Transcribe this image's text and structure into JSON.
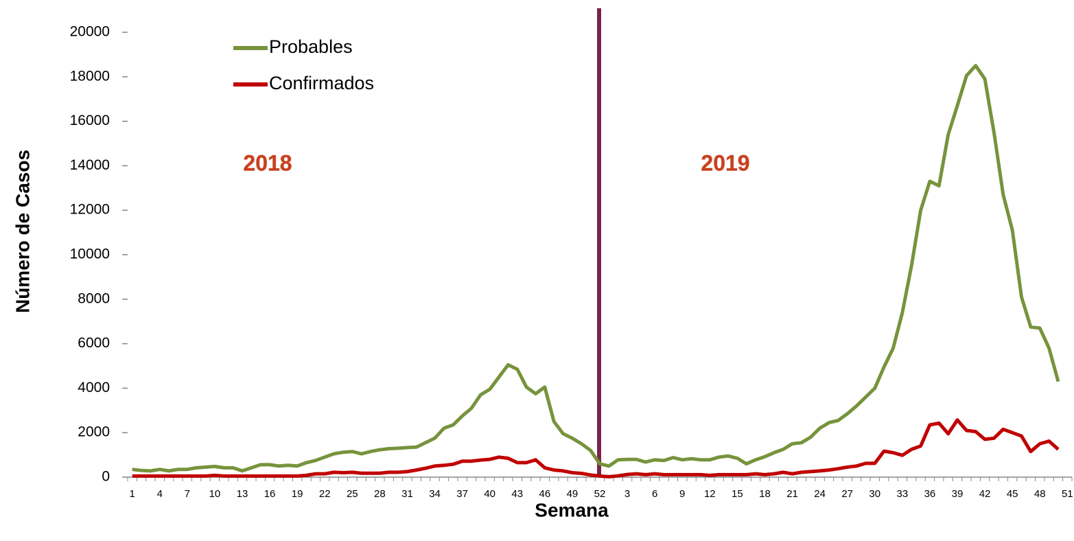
{
  "chart_data": {
    "type": "line",
    "xlabel": "Semana",
    "ylabel": "Número de Casos",
    "annotations": [
      "2018",
      "2019"
    ],
    "legend": "upper left",
    "categories": [
      "1",
      null,
      null,
      "4",
      null,
      null,
      "7",
      null,
      null,
      "10",
      null,
      null,
      "13",
      null,
      null,
      "16",
      null,
      null,
      "19",
      null,
      null,
      "22",
      null,
      null,
      "25",
      null,
      null,
      "28",
      null,
      null,
      "31",
      null,
      null,
      "34",
      null,
      null,
      "37",
      null,
      null,
      "40",
      null,
      null,
      "43",
      null,
      null,
      "46",
      null,
      null,
      "49",
      null,
      null,
      "52",
      null,
      null,
      "3",
      null,
      null,
      "6",
      null,
      null,
      "9",
      null,
      null,
      "12",
      null,
      null,
      "15",
      null,
      null,
      "18",
      null,
      null,
      "21",
      null,
      null,
      "24",
      null,
      null,
      "27",
      null,
      null,
      "30",
      null,
      null,
      "33",
      null,
      null,
      "36",
      null,
      null,
      "39",
      null,
      null,
      "42",
      null,
      null,
      "45",
      null,
      null,
      "48",
      null,
      null,
      "51"
    ],
    "series": [
      {
        "name": "Probables",
        "color": "#77933c",
        "values": [
          350,
          300,
          280,
          350,
          280,
          350,
          350,
          420,
          450,
          480,
          420,
          420,
          280,
          420,
          560,
          560,
          500,
          530,
          500,
          650,
          750,
          900,
          1050,
          1120,
          1150,
          1050,
          1150,
          1230,
          1280,
          1300,
          1330,
          1350,
          1550,
          1750,
          2200,
          2350,
          2750,
          3100,
          3700,
          3950,
          4500,
          5050,
          4850,
          4050,
          3750,
          4050,
          2500,
          1950,
          1750,
          1500,
          1200,
          600,
          500,
          780,
          800,
          800,
          680,
          780,
          750,
          880,
          780,
          830,
          780,
          780,
          900,
          950,
          850,
          600,
          780,
          920,
          1100,
          1250,
          1500,
          1550,
          1800,
          2200,
          2450,
          2550,
          2850,
          3200,
          3600,
          4000,
          4950,
          5800,
          7400,
          9500,
          12000,
          13300,
          13100,
          15400,
          16700,
          18050,
          18500,
          17900,
          15500,
          12700,
          11100,
          8100,
          6750,
          6700,
          5800,
          4300,
          null
        ]
      },
      {
        "name": "Confirmados",
        "color": "#c00000",
        "values": [
          50,
          50,
          50,
          50,
          50,
          50,
          50,
          50,
          50,
          80,
          50,
          50,
          50,
          50,
          50,
          50,
          50,
          50,
          50,
          80,
          150,
          150,
          220,
          200,
          220,
          180,
          180,
          180,
          220,
          220,
          250,
          320,
          400,
          500,
          530,
          580,
          720,
          720,
          770,
          800,
          900,
          850,
          650,
          650,
          780,
          420,
          320,
          280,
          200,
          170,
          100,
          50,
          20,
          60,
          120,
          150,
          110,
          150,
          110,
          110,
          110,
          110,
          110,
          80,
          110,
          110,
          110,
          110,
          150,
          110,
          150,
          220,
          150,
          220,
          250,
          280,
          320,
          380,
          450,
          500,
          620,
          620,
          1170,
          1100,
          980,
          1250,
          1400,
          2350,
          2430,
          1950,
          2570,
          2100,
          2050,
          1700,
          1750,
          2150,
          2000,
          1850,
          1150,
          1500,
          1620,
          1250,
          null
        ]
      }
    ],
    "ylim": [
      0,
      20000
    ],
    "yticks": [
      0,
      2000,
      4000,
      6000,
      8000,
      10000,
      12000,
      14000,
      16000,
      18000,
      20000
    ],
    "grid": false
  }
}
